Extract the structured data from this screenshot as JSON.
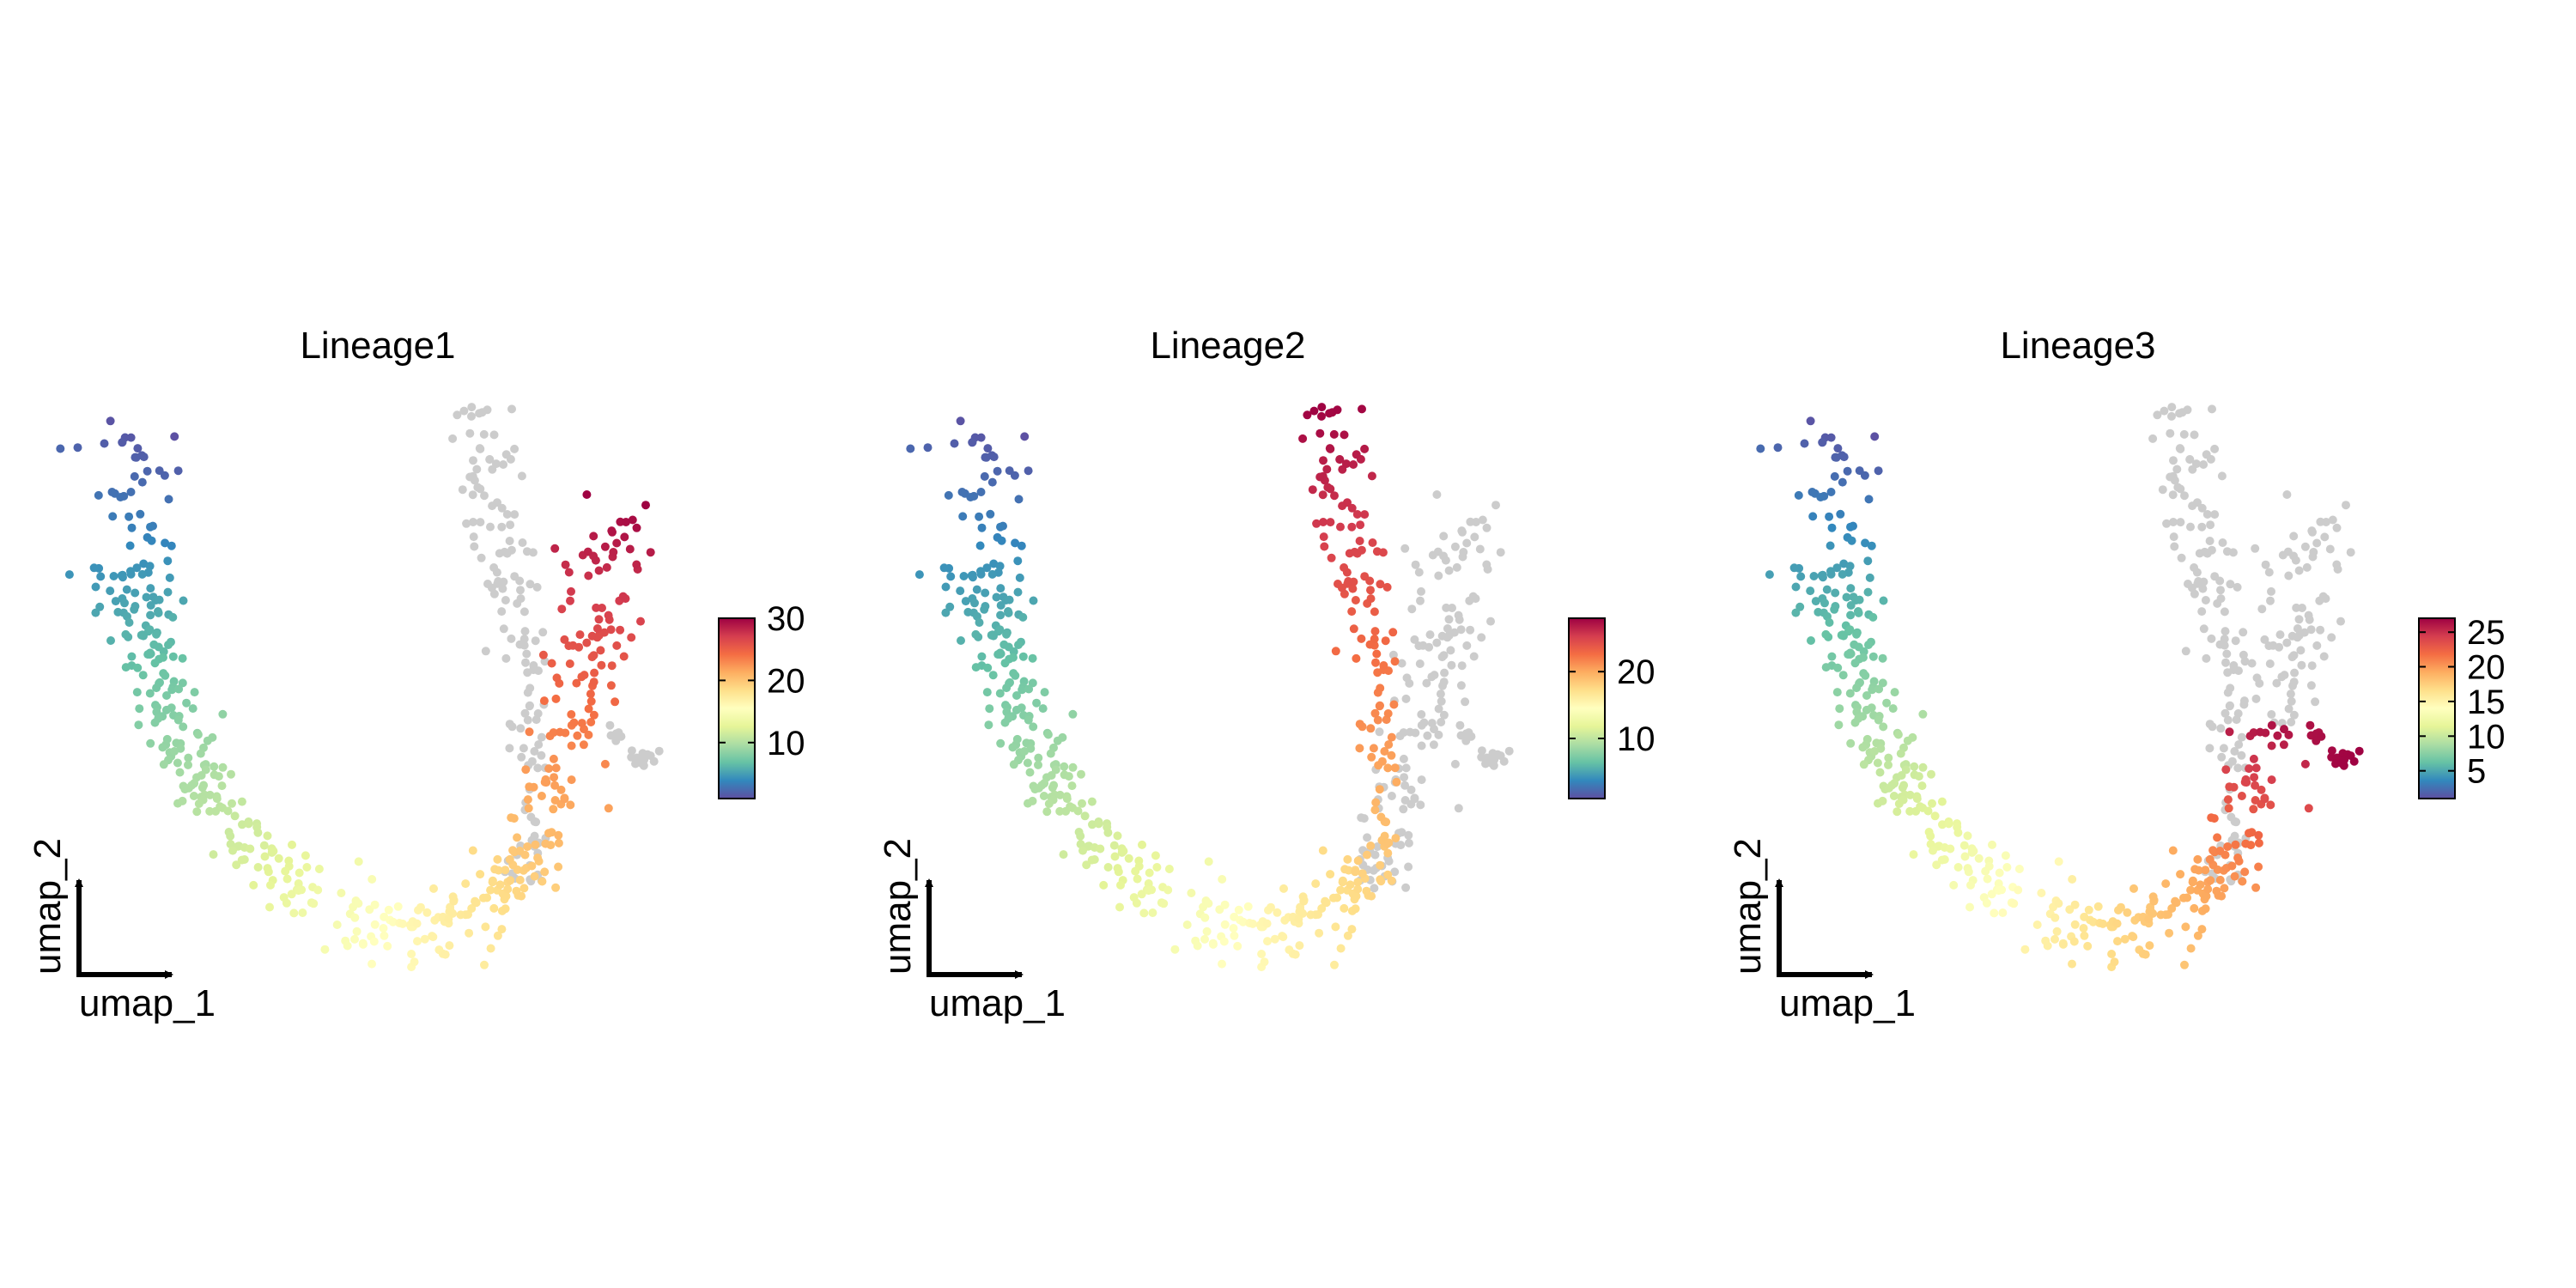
{
  "chart_data": [
    {
      "type": "scatter",
      "title": "Lineage1",
      "xlabel": "umap_1",
      "ylabel": "umap_2",
      "colorbar": {
        "range": [
          1,
          30
        ],
        "ticks": [
          10,
          20,
          30
        ]
      },
      "grid": false,
      "na_color": "#cccccc",
      "colors": [
        "#5e4fa2",
        "#3288bd",
        "#66c2a5",
        "#abdda4",
        "#e6f598",
        "#ffffbf",
        "#fee08b",
        "#fdae61",
        "#f46d43",
        "#d53e4f",
        "#9e0142"
      ],
      "value_scheme": "path"
    },
    {
      "type": "scatter",
      "title": "Lineage2",
      "xlabel": "umap_1",
      "ylabel": "umap_2",
      "colorbar": {
        "range": [
          1,
          28
        ],
        "ticks": [
          10,
          20
        ]
      },
      "grid": false,
      "na_color": "#cccccc",
      "colors": [
        "#5e4fa2",
        "#3288bd",
        "#66c2a5",
        "#abdda4",
        "#e6f598",
        "#ffffbf",
        "#fee08b",
        "#fdae61",
        "#f46d43",
        "#d53e4f",
        "#9e0142"
      ],
      "value_scheme": "path"
    },
    {
      "type": "scatter",
      "title": "Lineage3",
      "xlabel": "umap_1",
      "ylabel": "umap_2",
      "colorbar": {
        "range": [
          1,
          27
        ],
        "ticks": [
          5,
          10,
          15,
          20,
          25
        ]
      },
      "grid": false,
      "na_color": "#cccccc",
      "colors": [
        "#5e4fa2",
        "#3288bd",
        "#66c2a5",
        "#abdda4",
        "#e6f598",
        "#ffffbf",
        "#fee08b",
        "#fdae61",
        "#f46d43",
        "#d53e4f",
        "#9e0142"
      ],
      "value_scheme": "path"
    }
  ]
}
